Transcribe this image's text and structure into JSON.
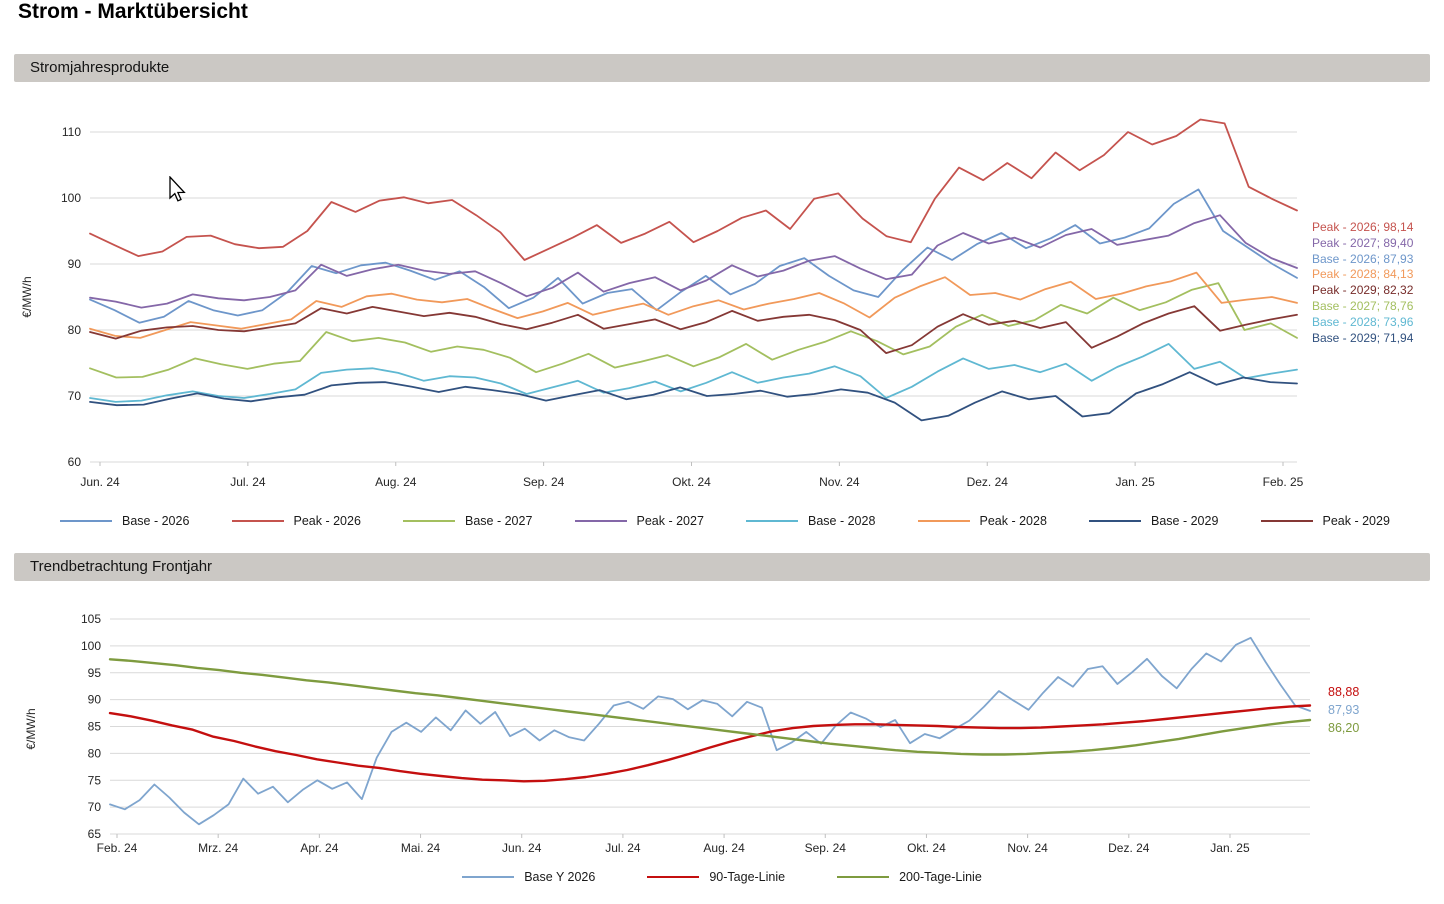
{
  "page": {
    "title": "Strom - Marktübersicht"
  },
  "sections": [
    {
      "header": "Stromjahresprodukte"
    },
    {
      "header": "Trendbetrachtung Frontjahr"
    }
  ],
  "colors": {
    "header_bar": "#CBC8C4",
    "gridline": "#D9D9D9",
    "base_2026": "#6D96CA",
    "peak_2026": "#C5534E",
    "base_2027": "#A3BF5F",
    "peak_2027": "#8467A8",
    "base_2028": "#5FB8D2",
    "peak_2028": "#F1995A",
    "base_2029": "#31517F",
    "peak_2029": "#853835",
    "trend_base": "#7FA5CE",
    "trend_90": "#C40F0F",
    "trend_200": "#7E9B3F"
  },
  "chart_data": [
    {
      "type": "line",
      "title": "Stromjahresprodukte",
      "xlabel": "",
      "ylabel": "€/MW/h",
      "ylim": [
        60,
        113.5
      ],
      "yticks": [
        60,
        70,
        80,
        90,
        100,
        110
      ],
      "grid": true,
      "legend_position": "bottom",
      "xtick_labels": [
        "Jun. 24",
        "Jul. 24",
        "Aug. 24",
        "Sep. 24",
        "Okt. 24",
        "Nov. 24",
        "Dez. 24",
        "Jan. 25",
        "Feb. 25"
      ],
      "series": [
        {
          "name": "Base - 2026",
          "color": "#6D96CA",
          "last_value": "87,93",
          "values": [
            84.6,
            83.0,
            81.1,
            82.0,
            84.4,
            83.0,
            82.2,
            83.0,
            85.7,
            89.7,
            88.6,
            89.8,
            90.2,
            89.0,
            87.6,
            88.9,
            86.5,
            83.3,
            84.9,
            87.9,
            84.0,
            85.6,
            86.2,
            83.0,
            85.8,
            88.2,
            85.4,
            87.0,
            89.7,
            90.9,
            88.2,
            86.0,
            85.0,
            89.1,
            92.5,
            90.6,
            93.0,
            94.7,
            92.4,
            93.9,
            95.9,
            93.1,
            94.0,
            95.4,
            99.1,
            101.3,
            95.0,
            92.5,
            90.0,
            87.9
          ]
        },
        {
          "name": "Peak - 2026",
          "color": "#C5534E",
          "last_value": "98,14",
          "values": [
            94.6,
            92.9,
            91.2,
            91.9,
            94.1,
            94.3,
            93.0,
            92.4,
            92.6,
            95.0,
            99.4,
            97.9,
            99.6,
            100.1,
            99.2,
            99.7,
            97.4,
            94.8,
            90.6,
            92.3,
            94.0,
            95.9,
            93.2,
            94.6,
            96.4,
            93.3,
            95.0,
            97.0,
            98.1,
            95.3,
            99.9,
            100.7,
            96.9,
            94.2,
            93.3,
            99.9,
            104.6,
            102.7,
            105.3,
            103.0,
            106.9,
            104.2,
            106.5,
            110.0,
            108.1,
            109.4,
            111.9,
            111.3,
            101.7,
            99.8,
            98.1
          ]
        },
        {
          "name": "Base - 2027",
          "color": "#A3BF5F",
          "last_value": "78,76",
          "values": [
            74.2,
            72.8,
            72.9,
            74.0,
            75.7,
            74.8,
            74.1,
            74.9,
            75.3,
            79.7,
            78.3,
            78.8,
            78.1,
            76.7,
            77.5,
            77.0,
            75.8,
            73.6,
            74.9,
            76.4,
            74.3,
            75.2,
            76.2,
            74.5,
            75.9,
            77.9,
            75.5,
            77.0,
            78.2,
            79.8,
            78.3,
            76.3,
            77.5,
            80.5,
            82.3,
            80.6,
            81.5,
            83.8,
            82.5,
            84.9,
            83.0,
            84.2,
            86.1,
            87.1,
            80.0,
            81.0,
            78.8
          ]
        },
        {
          "name": "Peak - 2027",
          "color": "#8467A8",
          "last_value": "89,40",
          "values": [
            84.9,
            84.3,
            83.4,
            84.0,
            85.4,
            84.8,
            84.5,
            85.0,
            86.0,
            89.9,
            88.2,
            89.2,
            89.9,
            89.0,
            88.5,
            88.9,
            87.1,
            85.1,
            86.4,
            88.7,
            85.8,
            87.1,
            88.0,
            86.0,
            87.5,
            89.8,
            88.1,
            89.0,
            90.5,
            91.2,
            89.3,
            87.7,
            88.4,
            92.8,
            94.7,
            93.1,
            94.0,
            92.5,
            94.4,
            95.3,
            92.9,
            93.6,
            94.3,
            96.2,
            97.4,
            93.2,
            90.9,
            89.4
          ]
        },
        {
          "name": "Base - 2028",
          "color": "#5FB8D2",
          "last_value": "73,96",
          "values": [
            69.7,
            69.1,
            69.3,
            70.1,
            70.7,
            70.0,
            69.7,
            70.3,
            71.0,
            73.5,
            74.0,
            74.2,
            73.5,
            72.3,
            73.0,
            72.8,
            71.9,
            70.3,
            71.3,
            72.3,
            70.5,
            71.2,
            72.2,
            70.7,
            72.0,
            73.6,
            72.0,
            72.8,
            73.4,
            74.5,
            73.0,
            69.7,
            71.4,
            73.7,
            75.7,
            74.1,
            74.7,
            73.6,
            74.9,
            72.3,
            74.4,
            76.0,
            77.9,
            74.1,
            75.2,
            72.7,
            73.4,
            74.0
          ]
        },
        {
          "name": "Peak - 2028",
          "color": "#F1995A",
          "last_value": "84,13",
          "values": [
            80.2,
            79.1,
            78.8,
            80.0,
            81.2,
            80.7,
            80.2,
            80.9,
            81.6,
            84.4,
            83.5,
            85.1,
            85.5,
            84.6,
            84.2,
            84.7,
            83.2,
            81.8,
            82.8,
            84.1,
            82.3,
            83.2,
            84.0,
            82.3,
            83.6,
            84.5,
            83.1,
            84.0,
            84.7,
            85.6,
            84.0,
            81.9,
            84.9,
            86.6,
            88.0,
            85.3,
            85.6,
            84.6,
            86.2,
            87.3,
            84.7,
            85.5,
            86.6,
            87.4,
            88.7,
            84.1,
            84.6,
            85.0,
            84.1
          ]
        },
        {
          "name": "Base - 2029",
          "color": "#31517F",
          "last_value": "71,94",
          "values": [
            69.1,
            68.6,
            68.7,
            69.6,
            70.4,
            69.6,
            69.2,
            69.8,
            70.2,
            71.6,
            72.0,
            72.1,
            71.4,
            70.6,
            71.4,
            70.9,
            70.3,
            69.3,
            70.1,
            70.9,
            69.5,
            70.2,
            71.3,
            70.0,
            70.3,
            70.8,
            69.9,
            70.3,
            71.0,
            70.5,
            69.0,
            66.3,
            67.0,
            69.0,
            70.7,
            69.5,
            70.0,
            66.9,
            67.4,
            70.4,
            71.8,
            73.6,
            71.7,
            72.8,
            72.1,
            71.9
          ]
        },
        {
          "name": "Peak - 2029",
          "color": "#853835",
          "last_value": "82,32",
          "values": [
            79.7,
            78.7,
            79.9,
            80.4,
            80.6,
            80.0,
            79.8,
            80.4,
            81.0,
            83.3,
            82.5,
            83.5,
            82.8,
            82.1,
            82.6,
            82.0,
            80.9,
            80.1,
            81.1,
            82.3,
            80.2,
            80.9,
            81.6,
            80.1,
            81.2,
            82.9,
            81.4,
            82.0,
            82.3,
            81.5,
            80.0,
            76.5,
            77.7,
            80.5,
            82.4,
            80.8,
            81.4,
            80.3,
            81.2,
            77.3,
            79.0,
            81.0,
            82.5,
            83.6,
            79.9,
            80.8,
            81.6,
            82.3
          ]
        }
      ],
      "end_labels": [
        {
          "text": "Peak - 2026; 98,14",
          "color": "#C5534E"
        },
        {
          "text": "Peak - 2027; 89,40",
          "color": "#8467A8"
        },
        {
          "text": "Base - 2026; 87,93",
          "color": "#6D96CA"
        },
        {
          "text": "Peak - 2028; 84,13",
          "color": "#F1995A"
        },
        {
          "text": "Peak - 2029; 82,32",
          "color": "#772C2A"
        },
        {
          "text": "Base - 2027; 78,76",
          "color": "#A3BF5F"
        },
        {
          "text": "Base - 2028; 73,96",
          "color": "#5FB8D2"
        },
        {
          "text": "Base - 2029; 71,94",
          "color": "#31517F"
        }
      ]
    },
    {
      "type": "line",
      "title": "Trendbetrachtung Frontjahr",
      "xlabel": "",
      "ylabel": "€/MW/h",
      "ylim": [
        65,
        106
      ],
      "yticks": [
        65,
        70,
        75,
        80,
        85,
        90,
        95,
        100,
        105
      ],
      "grid": true,
      "legend_position": "bottom",
      "xtick_labels": [
        "Feb. 24",
        "Mrz. 24",
        "Apr. 24",
        "Mai. 24",
        "Jun. 24",
        "Jul. 24",
        "Aug. 24",
        "Sep. 24",
        "Okt. 24",
        "Nov. 24",
        "Dez. 24",
        "Jan. 25"
      ],
      "series": [
        {
          "name": "Base Y 2026",
          "color": "#7FA5CE",
          "last_value": "87,93",
          "values": [
            70.5,
            69.6,
            71.3,
            74.2,
            71.8,
            69.0,
            66.8,
            68.5,
            70.5,
            75.3,
            72.5,
            73.8,
            70.9,
            73.2,
            75.0,
            73.4,
            74.6,
            71.5,
            79.2,
            84.0,
            85.7,
            84.0,
            86.7,
            84.3,
            88.0,
            85.5,
            87.7,
            83.2,
            84.6,
            82.4,
            84.3,
            83.0,
            82.4,
            85.5,
            88.9,
            89.6,
            88.3,
            90.6,
            90.1,
            88.2,
            89.9,
            89.2,
            86.9,
            89.6,
            88.5,
            80.6,
            82.0,
            84.0,
            81.8,
            85.2,
            87.6,
            86.5,
            84.9,
            86.2,
            81.9,
            83.6,
            82.8,
            84.5,
            86.1,
            88.7,
            91.6,
            89.8,
            88.1,
            91.3,
            94.2,
            92.4,
            95.7,
            96.2,
            92.9,
            95.1,
            97.6,
            94.4,
            92.1,
            95.7,
            98.6,
            97.1,
            100.2,
            101.5,
            97.0,
            92.8,
            88.9,
            87.9
          ]
        },
        {
          "name": "90-Tage-Linie",
          "color": "#C40F0F",
          "last_value": "88,88",
          "values": [
            87.5,
            86.9,
            86.1,
            85.2,
            84.4,
            83.1,
            82.3,
            81.3,
            80.4,
            79.7,
            78.9,
            78.3,
            77.7,
            77.3,
            76.7,
            76.2,
            75.8,
            75.4,
            75.1,
            75.0,
            74.8,
            74.9,
            75.2,
            75.6,
            76.2,
            76.9,
            77.8,
            78.8,
            79.9,
            81.1,
            82.2,
            83.2,
            84.1,
            84.7,
            85.1,
            85.3,
            85.4,
            85.4,
            85.3,
            85.2,
            85.1,
            84.9,
            84.8,
            84.7,
            84.7,
            84.8,
            85.0,
            85.2,
            85.4,
            85.7,
            86.0,
            86.4,
            86.8,
            87.2,
            87.6,
            88.0,
            88.4,
            88.7,
            88.9
          ]
        },
        {
          "name": "200-Tage-Linie",
          "color": "#7E9B3F",
          "last_value": "86,20",
          "values": [
            97.5,
            97.2,
            96.8,
            96.4,
            95.9,
            95.5,
            95.0,
            94.6,
            94.1,
            93.6,
            93.2,
            92.7,
            92.2,
            91.7,
            91.2,
            90.8,
            90.3,
            89.8,
            89.3,
            88.8,
            88.3,
            87.8,
            87.3,
            86.8,
            86.3,
            85.8,
            85.3,
            84.8,
            84.3,
            83.8,
            83.3,
            82.8,
            82.3,
            81.8,
            81.4,
            81.0,
            80.6,
            80.3,
            80.1,
            79.9,
            79.8,
            79.8,
            79.9,
            80.1,
            80.3,
            80.6,
            81.0,
            81.5,
            82.1,
            82.7,
            83.4,
            84.1,
            84.7,
            85.3,
            85.8,
            86.2
          ]
        }
      ],
      "end_labels": [
        {
          "text": "88,88",
          "color": "#C40F0F"
        },
        {
          "text": "87,93",
          "color": "#7FA5CE"
        },
        {
          "text": "86,20",
          "color": "#7E9B3F"
        }
      ]
    }
  ]
}
